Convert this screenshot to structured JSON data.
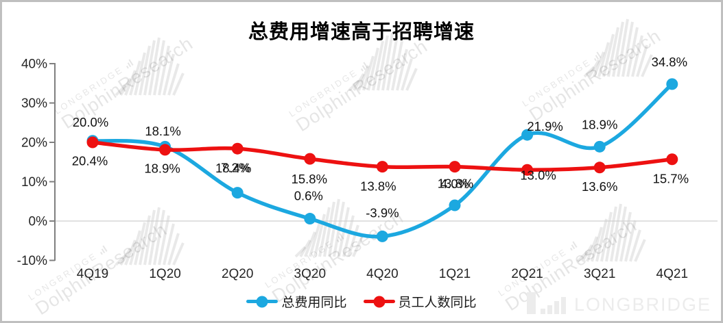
{
  "title": "总费用增速高于招聘增速",
  "chart_data": {
    "type": "line",
    "title": "总费用增速高于招聘增速",
    "categories": [
      "4Q19",
      "1Q20",
      "2Q20",
      "3Q20",
      "4Q20",
      "1Q21",
      "2Q21",
      "3Q21",
      "4Q21"
    ],
    "series": [
      {
        "name": "总费用同比",
        "color": "#1CA8E0",
        "values": [
          20.4,
          18.9,
          7.2,
          0.6,
          -3.9,
          4.0,
          21.9,
          18.9,
          34.8
        ],
        "labels": [
          "20.4%",
          "18.9%",
          "7.2%",
          "0.6%",
          "-3.9%",
          "4.0%",
          "21.9%",
          "18.9%",
          "34.8%"
        ]
      },
      {
        "name": "员工人数同比",
        "color": "#ED1111",
        "values": [
          20.0,
          18.1,
          18.4,
          15.8,
          13.8,
          13.8,
          13.0,
          13.6,
          15.7
        ],
        "labels": [
          "20.0%",
          "18.1%",
          "18.4%",
          "15.8%",
          "13.8%",
          "13.8%",
          "13.0%",
          "13.6%",
          "15.7%"
        ]
      }
    ],
    "ytick_labels": [
      "40%",
      "30%",
      "20%",
      "10%",
      "0%",
      "-10%"
    ],
    "ytick_values": [
      40,
      30,
      20,
      10,
      0,
      -10
    ],
    "ylim": [
      -10,
      40
    ],
    "smooth": true,
    "markers": "circle",
    "grid": "horizontal gridline at 0% only",
    "legend_position": "bottom-center"
  },
  "watermark": {
    "brand": "LONGBRIDGE",
    "name": "DolphinResearch",
    "icon": "bar-fan-watermark-icon"
  },
  "logo": {
    "label": "LONGBRIDGE",
    "icon": "ascending-bars-icon"
  }
}
